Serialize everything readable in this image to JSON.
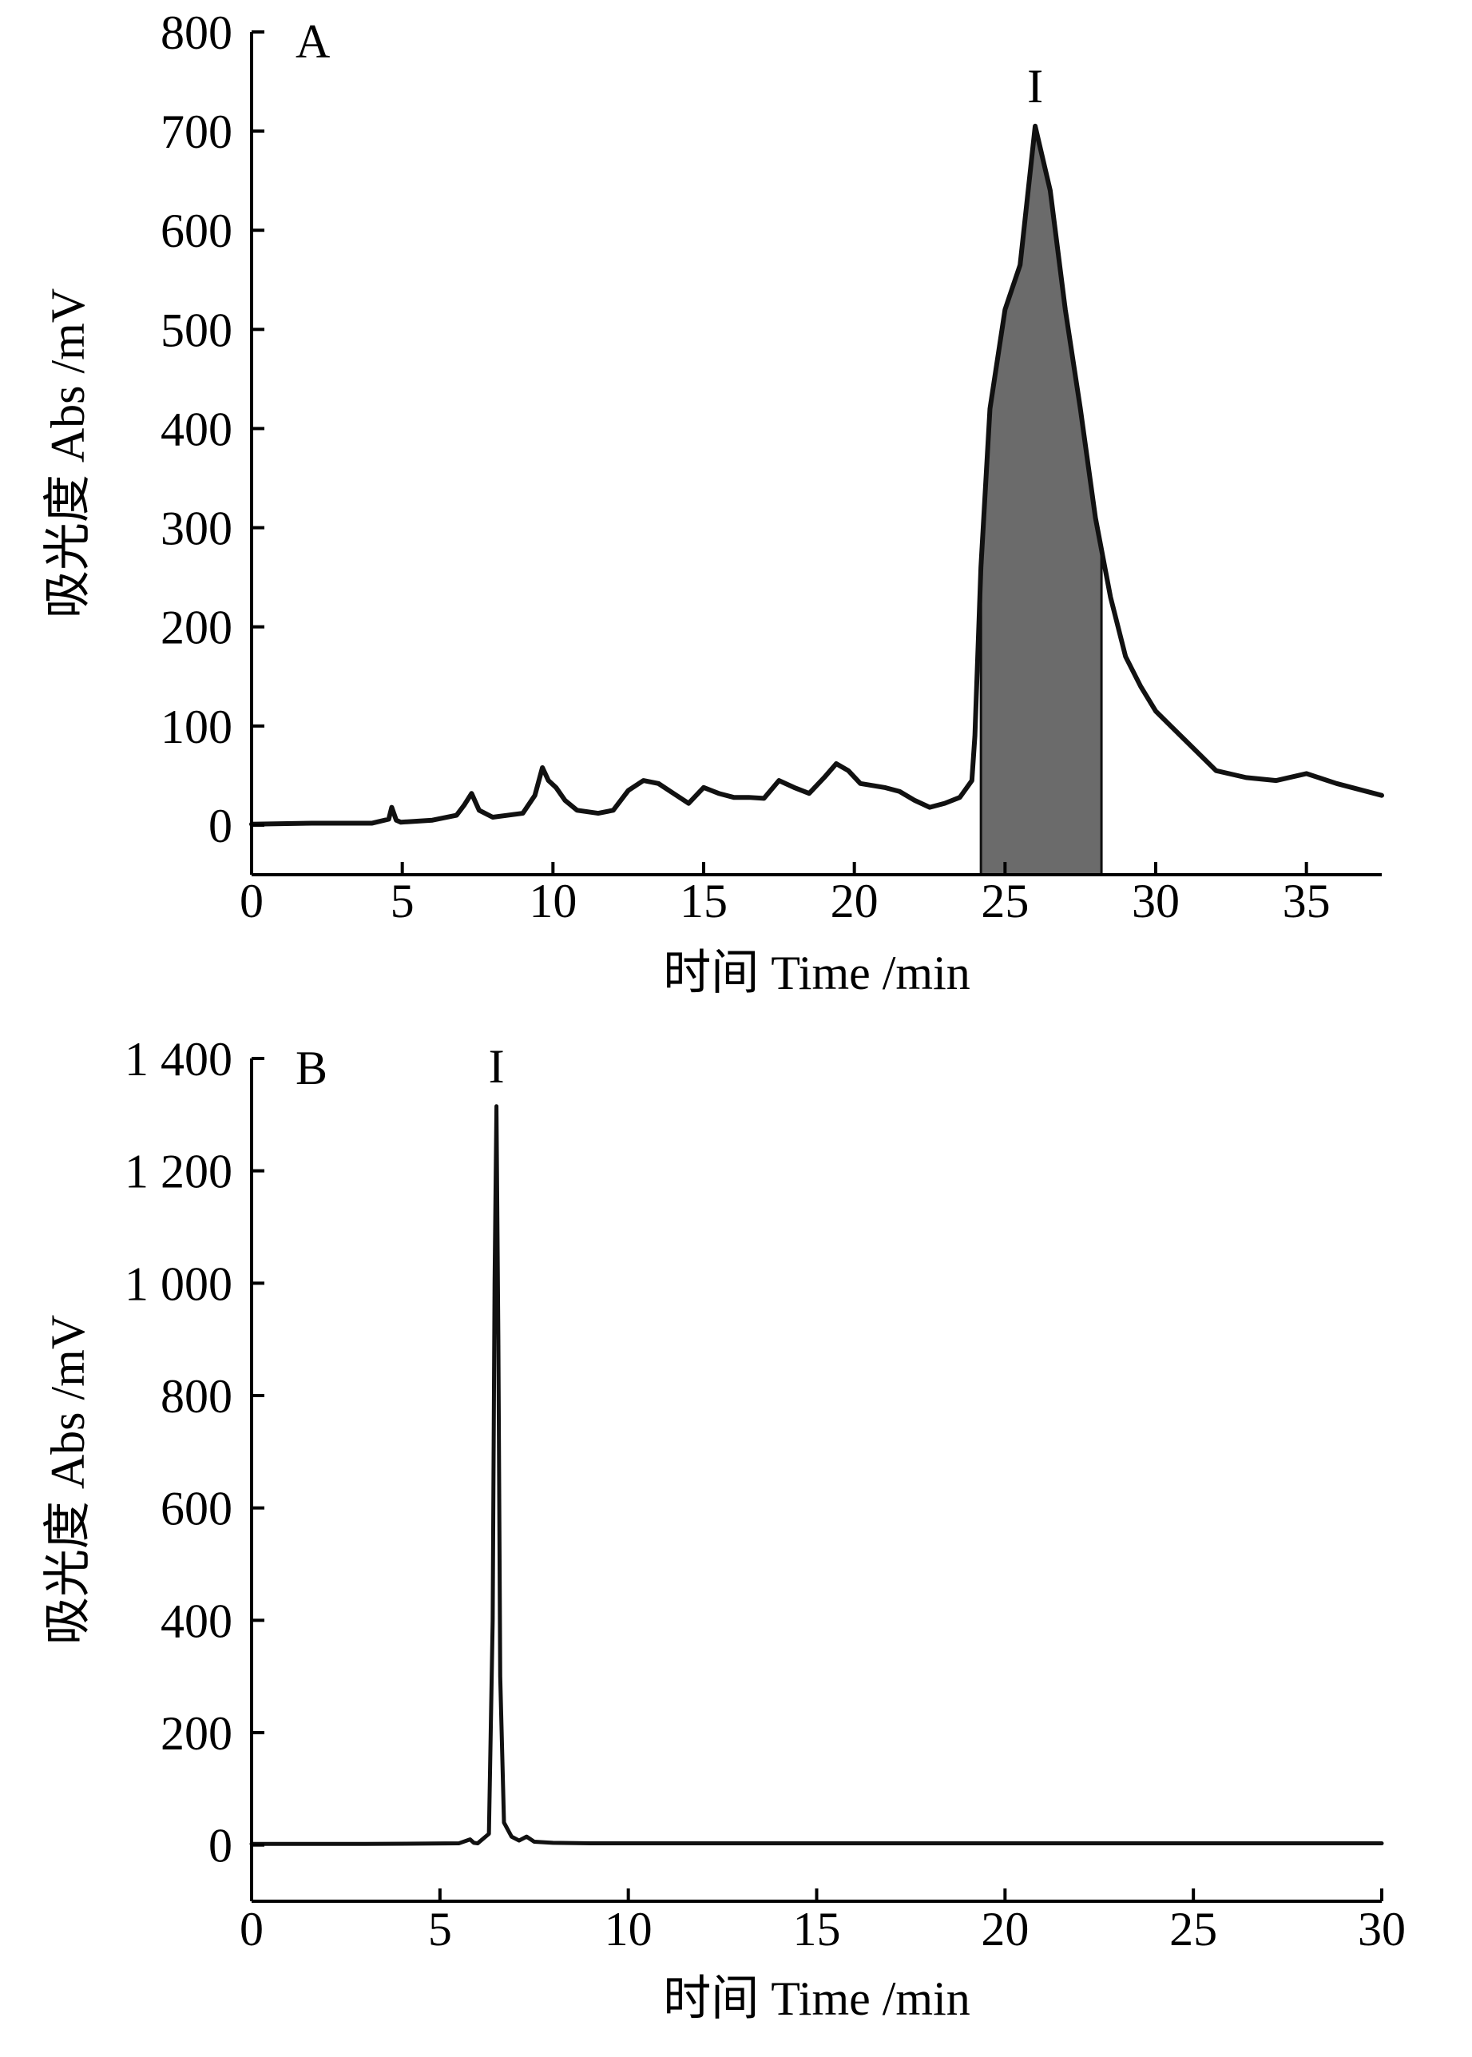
{
  "chart_data": [
    {
      "type": "line",
      "panel_label": "A",
      "xlabel": "时间 Time /min",
      "ylabel": "吸光度 Abs /mV",
      "xlim": [
        0,
        37.5
      ],
      "ylim": [
        -50,
        800
      ],
      "xticks": [
        0,
        5,
        10,
        15,
        20,
        25,
        30,
        35
      ],
      "xtick_labels": [
        "0",
        "5",
        "10",
        "15",
        "20",
        "25",
        "30",
        "35"
      ],
      "yticks": [
        0,
        100,
        200,
        300,
        400,
        500,
        600,
        700,
        800
      ],
      "ytick_labels": [
        "0",
        "100",
        "200",
        "300",
        "400",
        "500",
        "600",
        "700",
        "800"
      ],
      "grid": false,
      "annotations": [
        {
          "text": "I",
          "x": 26.0,
          "y": 705
        }
      ],
      "shaded_region": {
        "x_start": 24.2,
        "x_end": 28.2
      },
      "series": [
        {
          "x": [
            0,
            2,
            4,
            4.55,
            4.65,
            4.8,
            4.95,
            6,
            6.8,
            7.05,
            7.3,
            7.55,
            8,
            9,
            9.4,
            9.65,
            9.85,
            10.1,
            10.4,
            10.8,
            11.5,
            12,
            12.5,
            13,
            13.5,
            14,
            14.5,
            15,
            15.5,
            16,
            16.5,
            17,
            17.5,
            18,
            18.5,
            19,
            19.4,
            19.8,
            20.2,
            21,
            21.5,
            22,
            22.5,
            23,
            23.5,
            23.9,
            24.0,
            24.2,
            24.5,
            25,
            25.5,
            26.0,
            26.5,
            27,
            27.5,
            28,
            28.5,
            29,
            29.5,
            30,
            30.5,
            31,
            32,
            33,
            34,
            35,
            36,
            37.5
          ],
          "y": [
            1,
            2,
            2,
            6,
            18,
            5,
            3,
            5,
            10,
            20,
            32,
            15,
            8,
            12,
            30,
            58,
            45,
            38,
            25,
            15,
            12,
            15,
            35,
            45,
            42,
            32,
            22,
            38,
            32,
            28,
            28,
            27,
            45,
            38,
            32,
            48,
            62,
            55,
            42,
            38,
            34,
            25,
            18,
            22,
            28,
            45,
            90,
            260,
            420,
            520,
            565,
            705,
            640,
            520,
            420,
            310,
            230,
            170,
            140,
            115,
            100,
            85,
            55,
            48,
            45,
            52,
            42,
            30
          ]
        }
      ]
    },
    {
      "type": "line",
      "panel_label": "B",
      "xlabel": "时间 Time /min",
      "ylabel": "吸光度 Abs /mV",
      "xlim": [
        0,
        30
      ],
      "ylim": [
        -100,
        1400
      ],
      "xticks": [
        0,
        5,
        10,
        15,
        20,
        25,
        30
      ],
      "xtick_labels": [
        "0",
        "5",
        "10",
        "15",
        "20",
        "25",
        "30"
      ],
      "yticks": [
        0,
        200,
        400,
        600,
        800,
        1000,
        1200,
        1400
      ],
      "ytick_labels": [
        "0",
        "200",
        "400",
        "600",
        "800",
        "1 000",
        "1 200",
        "1 400"
      ],
      "grid": false,
      "annotations": [
        {
          "text": "I",
          "x": 6.5,
          "y": 1315
        }
      ],
      "series": [
        {
          "x": [
            0,
            3,
            5.5,
            5.8,
            5.9,
            6.0,
            6.3,
            6.4,
            6.45,
            6.5,
            6.55,
            6.6,
            6.7,
            6.9,
            7.1,
            7.3,
            7.5,
            8,
            9,
            12,
            20,
            30
          ],
          "y": [
            2,
            2,
            3,
            10,
            4,
            3,
            20,
            400,
            1000,
            1315,
            900,
            300,
            40,
            15,
            8,
            15,
            6,
            4,
            3,
            3,
            3,
            3
          ]
        }
      ]
    }
  ]
}
